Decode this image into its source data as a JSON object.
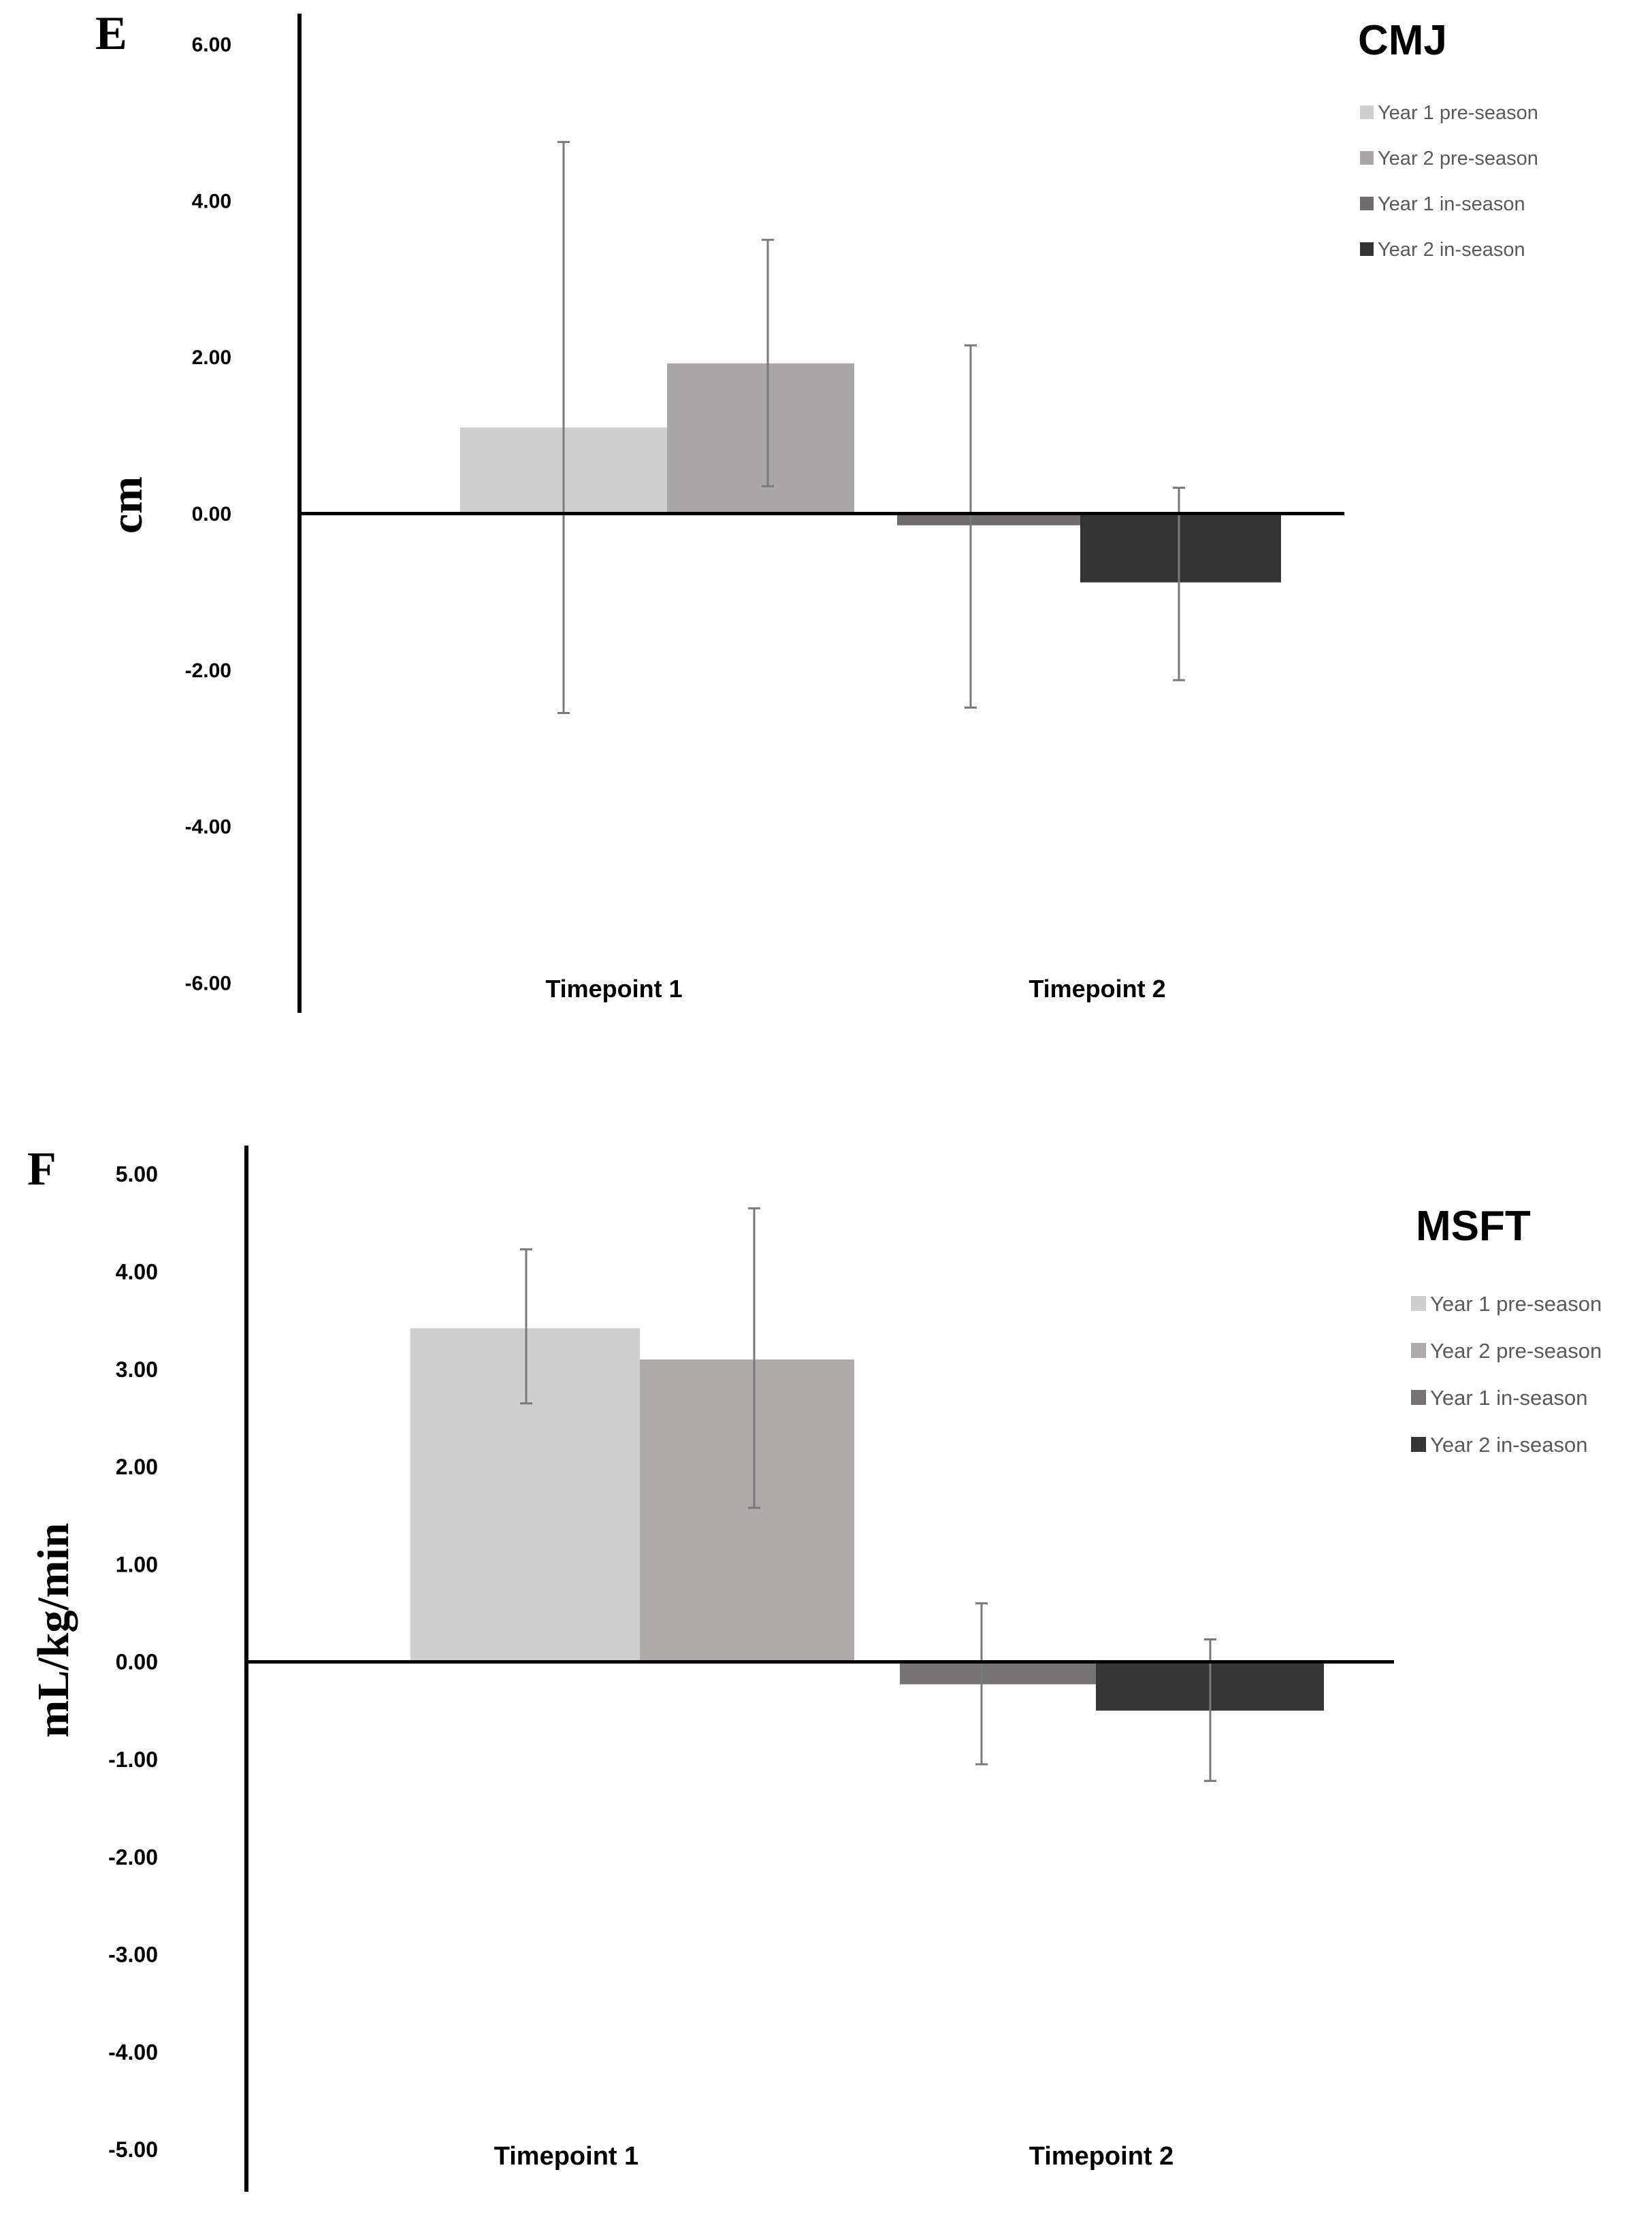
{
  "chart_data": [
    {
      "panel": "E",
      "type": "bar",
      "title": "CMJ",
      "ylabel": "cm",
      "xlabel": "",
      "ylim": [
        -6,
        6
      ],
      "yticks": [
        6,
        4,
        2,
        0,
        -2,
        -4,
        -6
      ],
      "ytick_labels": [
        "6.00",
        "4.00",
        "2.00",
        "0.00",
        "-2.00",
        "-4.00",
        "-6.00"
      ],
      "categories": [
        "Timepoint 1",
        "Timepoint 2"
      ],
      "legend_position": "top-right",
      "series": [
        {
          "name": "Year 1 pre-season",
          "color": "#d0cfd0",
          "category": "Timepoint 1",
          "value": 1.1,
          "err_low": -2.55,
          "err_high": 4.75
        },
        {
          "name": "Year 2 pre-season",
          "color": "#a9a7a7",
          "category": "Timepoint 1",
          "value": 1.92,
          "err_low": 0.35,
          "err_high": 3.5
        },
        {
          "name": "Year 1 in-season",
          "color": "#6f6d6e",
          "category": "Timepoint 2",
          "value": -0.15,
          "err_low": -2.48,
          "err_high": 2.15
        },
        {
          "name": "Year 2 in-season",
          "color": "#333333",
          "category": "Timepoint 2",
          "value": -0.88,
          "err_low": -2.13,
          "err_high": 0.33
        }
      ]
    },
    {
      "panel": "F",
      "type": "bar",
      "title": "MSFT",
      "ylabel": "mL/kg/min",
      "xlabel": "",
      "ylim": [
        -5,
        5
      ],
      "yticks": [
        5,
        4,
        3,
        2,
        1,
        0,
        -1,
        -2,
        -3,
        -4,
        -5
      ],
      "ytick_labels": [
        "5.00",
        "4.00",
        "3.00",
        "2.00",
        "1.00",
        "0.00",
        "-1.00",
        "-2.00",
        "-3.00",
        "-4.00",
        "-5.00"
      ],
      "categories": [
        "Timepoint 1",
        "Timepoint 2"
      ],
      "legend_position": "top-right",
      "series": [
        {
          "name": "Year 1 pre-season",
          "color": "#d0cfd0",
          "category": "Timepoint 1",
          "value": 3.42,
          "err_low": 2.65,
          "err_high": 4.23
        },
        {
          "name": "Year 2 pre-season",
          "color": "#aeaaaa",
          "category": "Timepoint 1",
          "value": 3.1,
          "err_low": 1.58,
          "err_high": 4.65
        },
        {
          "name": "Year 1 in-season",
          "color": "#767474",
          "category": "Timepoint 2",
          "value": -0.23,
          "err_low": -1.05,
          "err_high": 0.6
        },
        {
          "name": "Year 2 in-season",
          "color": "#363636",
          "category": "Timepoint 2",
          "value": -0.5,
          "err_low": -1.22,
          "err_high": 0.23
        }
      ]
    }
  ]
}
